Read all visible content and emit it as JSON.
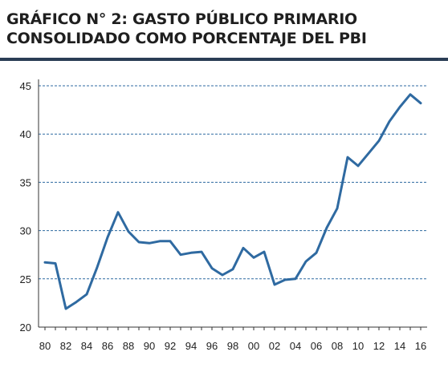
{
  "title": {
    "line1": "GRÁFICO N° 2: GASTO PÚBLICO PRIMARIO",
    "line2": "CONSOLIDADO COMO PORCENTAJE DEL PBI"
  },
  "colors": {
    "line": "#2f6aa1",
    "grid": "#2f6aa1",
    "axis": "#333333",
    "rule": "#2a3d55"
  },
  "chart_data": {
    "type": "line",
    "title": "GRÁFICO N° 2: GASTO PÚBLICO PRIMARIO CONSOLIDADO COMO PORCENTAJE DEL PBI",
    "xlabel": "",
    "ylabel": "",
    "x": [
      1980,
      1981,
      1982,
      1983,
      1984,
      1985,
      1986,
      1987,
      1988,
      1989,
      1990,
      1991,
      1992,
      1993,
      1994,
      1995,
      1996,
      1997,
      1998,
      1999,
      2000,
      2001,
      2002,
      2003,
      2004,
      2005,
      2006,
      2007,
      2008,
      2009,
      2010,
      2011,
      2012,
      2013,
      2014,
      2015,
      2016
    ],
    "series": [
      {
        "values": [
          26.7,
          26.6,
          21.9,
          22.6,
          23.4,
          26.2,
          29.3,
          31.9,
          29.9,
          28.8,
          28.7,
          28.9,
          28.9,
          27.5,
          27.7,
          27.8,
          26.1,
          25.4,
          26.0,
          28.2,
          27.2,
          27.8,
          24.4,
          24.9,
          25.0,
          26.8,
          27.7,
          30.3,
          32.3,
          37.6,
          36.7,
          38.0,
          39.3,
          41.3,
          42.8,
          44.1,
          43.2
        ]
      }
    ],
    "ylim": [
      20,
      45
    ],
    "xlim": [
      1980,
      2016
    ],
    "yticks": [
      "20",
      "25",
      "30",
      "35",
      "40",
      "45"
    ],
    "xticks": [
      "80",
      "82",
      "84",
      "86",
      "88",
      "90",
      "92",
      "94",
      "96",
      "98",
      "00",
      "02",
      "04",
      "06",
      "08",
      "10",
      "12",
      "14",
      "16"
    ],
    "grid": "horizontal dashed",
    "legend": "none"
  }
}
